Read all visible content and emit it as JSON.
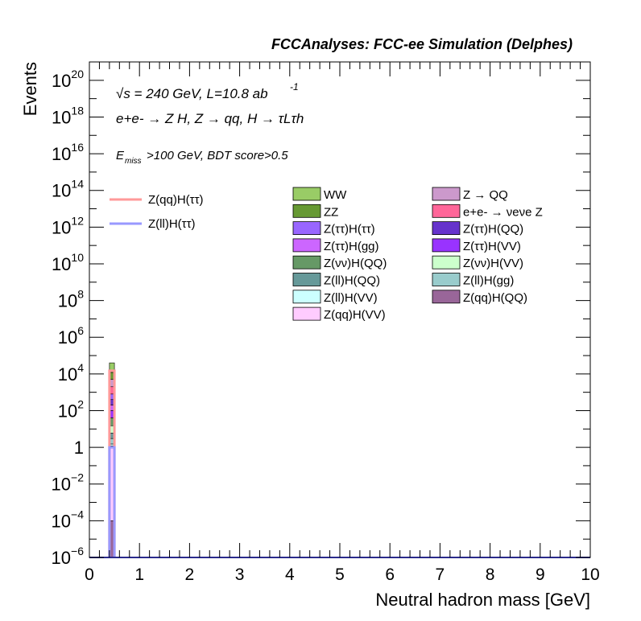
{
  "chart_data": {
    "type": "bar",
    "title": "FCCAnalyses: FCC-ee Simulation (Delphes)",
    "xlabel": "Neutral hadron mass [GeV]",
    "ylabel": "Events",
    "x_range": [
      0,
      10
    ],
    "y_range": [
      1e-06,
      1e+21
    ],
    "y_scale": "log",
    "grid": false,
    "x_ticks": [
      "0",
      "1",
      "2",
      "3",
      "4",
      "5",
      "6",
      "7",
      "8",
      "9",
      "10"
    ],
    "y_ticks": [
      {
        "base": "10",
        "exp": "20"
      },
      {
        "base": "10",
        "exp": "18"
      },
      {
        "base": "10",
        "exp": "16"
      },
      {
        "base": "10",
        "exp": "14"
      },
      {
        "base": "10",
        "exp": "12"
      },
      {
        "base": "10",
        "exp": "10"
      },
      {
        "base": "10",
        "exp": "8"
      },
      {
        "base": "10",
        "exp": "6"
      },
      {
        "base": "10",
        "exp": "4"
      },
      {
        "base": "10",
        "exp": "2"
      },
      {
        "base": "1",
        "exp": ""
      },
      {
        "base": "10",
        "exp": "−2"
      },
      {
        "base": "10",
        "exp": "−4"
      },
      {
        "base": "10",
        "exp": "−6"
      }
    ],
    "y_tick_values": [
      1e+20,
      1e+18,
      1e+16,
      100000000000000.0,
      1000000000000.0,
      10000000000.0,
      100000000.0,
      1000000.0,
      10000.0,
      100.0,
      1,
      0.01,
      0.0001,
      1e-06
    ],
    "bin": [
      0.4,
      0.5
    ],
    "stack_total": 40000,
    "stack": [
      {
        "name": "WW",
        "top": 40000,
        "color": "#99cc66"
      },
      {
        "name": "ZZ",
        "top": 12000,
        "color": "#669933"
      },
      {
        "name": "Z → QQ",
        "top": 5000,
        "color": "#cc99cc"
      },
      {
        "name": "e+e- → νeνe Z",
        "top": 2000,
        "color": "#ff6699"
      },
      {
        "name": "Z(ττ)H(ττ)",
        "top": 800,
        "color": "#9966ff"
      },
      {
        "name": "Z(ττ)H(QQ)",
        "top": 400,
        "color": "#6633cc"
      },
      {
        "name": "Z(ττ)H(gg)",
        "top": 200,
        "color": "#cc66ff"
      },
      {
        "name": "Z(ττ)H(VV)",
        "top": 100,
        "color": "#9933ff"
      },
      {
        "name": "Z(νν)H(QQ)",
        "top": 40,
        "color": "#669966"
      },
      {
        "name": "Z(νν)H(VV)",
        "top": 15,
        "color": "#ccffcc"
      },
      {
        "name": "Z(ll)H(QQ)",
        "top": 6,
        "color": "#669999"
      },
      {
        "name": "Z(ll)H(gg)",
        "top": 3,
        "color": "#99cccc"
      },
      {
        "name": "Z(ll)H(VV)",
        "top": 1.5,
        "color": "#ccffff"
      },
      {
        "name": "Z(qq)H(VV)",
        "top": 1.2,
        "color": "#ffccff"
      },
      {
        "name": "Z(qq)H(QQ)",
        "top": 0.0001,
        "color": "#996699"
      }
    ],
    "signals": [
      {
        "name": "Z(qq)H(ττ)",
        "value": 15000,
        "color": "#ff9999"
      },
      {
        "name": "Z(ll)H(ττ)",
        "value": 1,
        "color": "#9999ff"
      }
    ],
    "annotations": {
      "line1": "√s = 240 GeV, L=10.8 ab",
      "line1_sup": "-1",
      "line2": "e+e- → Z H, Z → qq, H → τLτh",
      "line3_sub": "miss",
      "line3": ">100 GeV, BDT score>0.5"
    }
  }
}
